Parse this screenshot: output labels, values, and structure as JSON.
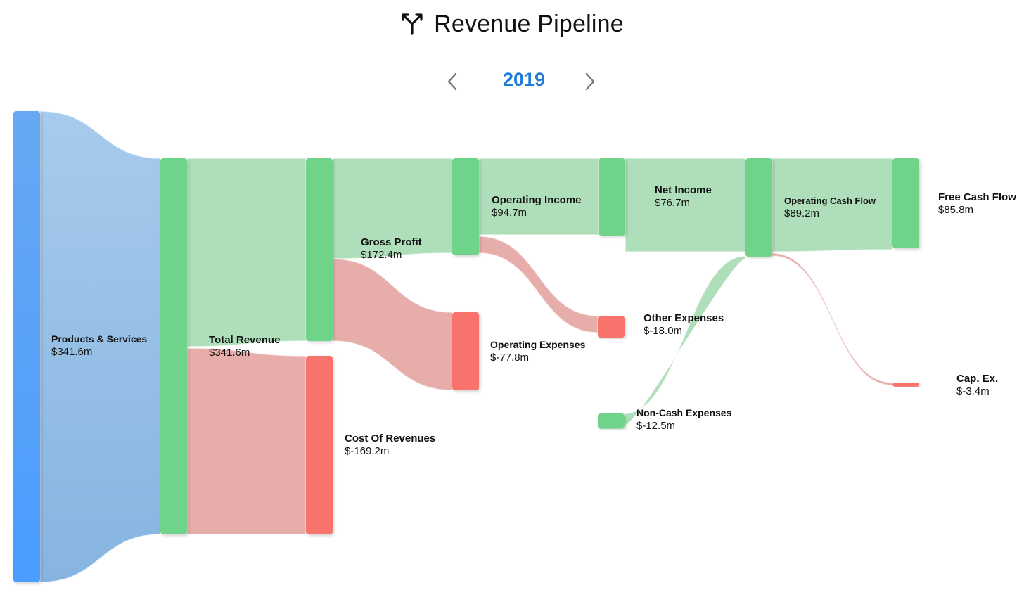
{
  "header": {
    "title": "Revenue Pipeline",
    "icon": "branch-split-icon"
  },
  "year_selector": {
    "year": "2019",
    "prev_icon": "chevron-left-icon",
    "next_icon": "chevron-right-icon"
  },
  "colors": {
    "revenue_blue": "#4f9cf3",
    "positive_green": "#6fd38a",
    "negative_red": "#f7736c",
    "link_green": "#a6dbb3",
    "link_red": "#e4a4a1",
    "link_blue": "#90bbe3",
    "year_accent": "#1f7ad8"
  },
  "chart_data": {
    "type": "sankey",
    "units": "$m",
    "nodes": [
      {
        "id": "products",
        "name": "Products & Services",
        "value": 341.6,
        "value_label": "$341.6m",
        "kind": "revenue"
      },
      {
        "id": "total_revenue",
        "name": "Total Revenue",
        "value": 341.6,
        "value_label": "$341.6m",
        "kind": "positive"
      },
      {
        "id": "cost_of_revenues",
        "name": "Cost Of Revenues",
        "value": -169.2,
        "value_label": "$-169.2m",
        "kind": "negative"
      },
      {
        "id": "gross_profit",
        "name": "Gross Profit",
        "value": 172.4,
        "value_label": "$172.4m",
        "kind": "positive"
      },
      {
        "id": "operating_expenses",
        "name": "Operating Expenses",
        "value": -77.8,
        "value_label": "$-77.8m",
        "kind": "negative"
      },
      {
        "id": "operating_income",
        "name": "Operating Income",
        "value": 94.7,
        "value_label": "$94.7m",
        "kind": "positive"
      },
      {
        "id": "other_expenses",
        "name": "Other Expenses",
        "value": -18.0,
        "value_label": "$-18.0m",
        "kind": "negative"
      },
      {
        "id": "net_income",
        "name": "Net Income",
        "value": 76.7,
        "value_label": "$76.7m",
        "kind": "positive"
      },
      {
        "id": "non_cash_expenses",
        "name": "Non-Cash Expenses",
        "value": -12.5,
        "value_label": "$-12.5m",
        "kind": "positive"
      },
      {
        "id": "operating_cash_flow",
        "name": "Operating Cash Flow",
        "value": 89.2,
        "value_label": "$89.2m",
        "kind": "positive"
      },
      {
        "id": "free_cash_flow",
        "name": "Free Cash Flow",
        "value": 85.8,
        "value_label": "$85.8m",
        "kind": "positive"
      },
      {
        "id": "capex",
        "name": "Cap. Ex.",
        "value": -3.4,
        "value_label": "$-3.4m",
        "kind": "negative"
      }
    ],
    "links": [
      {
        "source": "products",
        "target": "total_revenue",
        "value": 341.6,
        "kind": "revenue"
      },
      {
        "source": "total_revenue",
        "target": "gross_profit",
        "value": 172.4,
        "kind": "positive"
      },
      {
        "source": "total_revenue",
        "target": "cost_of_revenues",
        "value": 169.2,
        "kind": "negative"
      },
      {
        "source": "gross_profit",
        "target": "operating_income",
        "value": 94.7,
        "kind": "positive"
      },
      {
        "source": "gross_profit",
        "target": "operating_expenses",
        "value": 77.8,
        "kind": "negative"
      },
      {
        "source": "operating_income",
        "target": "net_income",
        "value": 76.7,
        "kind": "positive"
      },
      {
        "source": "operating_income",
        "target": "other_expenses",
        "value": 18.0,
        "kind": "negative"
      },
      {
        "source": "net_income",
        "target": "operating_cash_flow",
        "value": 76.7,
        "kind": "positive"
      },
      {
        "source": "non_cash_expenses",
        "target": "operating_cash_flow",
        "value": 12.5,
        "kind": "positive"
      },
      {
        "source": "operating_cash_flow",
        "target": "free_cash_flow",
        "value": 85.8,
        "kind": "positive"
      },
      {
        "source": "operating_cash_flow",
        "target": "capex",
        "value": 3.4,
        "kind": "negative"
      }
    ]
  }
}
